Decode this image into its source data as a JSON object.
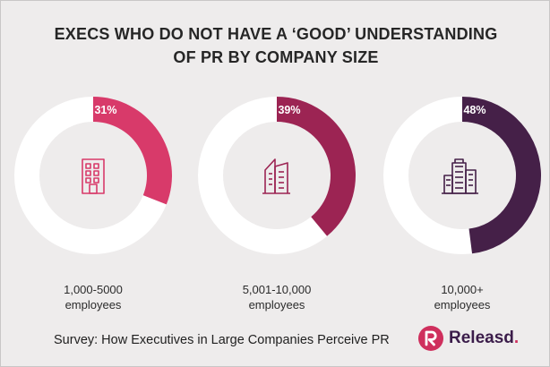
{
  "title_lines": [
    "EXECS WHO DO NOT HAVE A ‘GOOD’ UNDERSTANDING",
    "OF PR BY COMPANY SIZE"
  ],
  "chart_data": {
    "type": "pie",
    "title": "EXECS WHO DO NOT HAVE A ‘GOOD’ UNDERSTANDING OF PR BY COMPANY SIZE",
    "items": [
      {
        "caption_line1": "1,000-5000",
        "caption_line2": "employees",
        "value": 31,
        "label": "31%",
        "color": "#d83a6a",
        "icon": "building-icon"
      },
      {
        "caption_line1": "5,001-10,000",
        "caption_line2": "employees",
        "value": 39,
        "label": "39%",
        "color": "#9c2453",
        "icon": "office-tower-icon"
      },
      {
        "caption_line1": "10,000+",
        "caption_line2": "employees",
        "value": 48,
        "label": "48%",
        "color": "#452048",
        "icon": "skyscrapers-icon"
      }
    ],
    "remainder_color": "#ffffff"
  },
  "footer": {
    "survey": "Survey: How Executives in Large Companies Perceive PR"
  },
  "brand": {
    "name": "Releasd",
    "dot": "."
  },
  "colors": {
    "background": "#eeecec",
    "text": "#262626",
    "brand_pink": "#cf2f5d",
    "brand_purple": "#3b1c4a"
  }
}
